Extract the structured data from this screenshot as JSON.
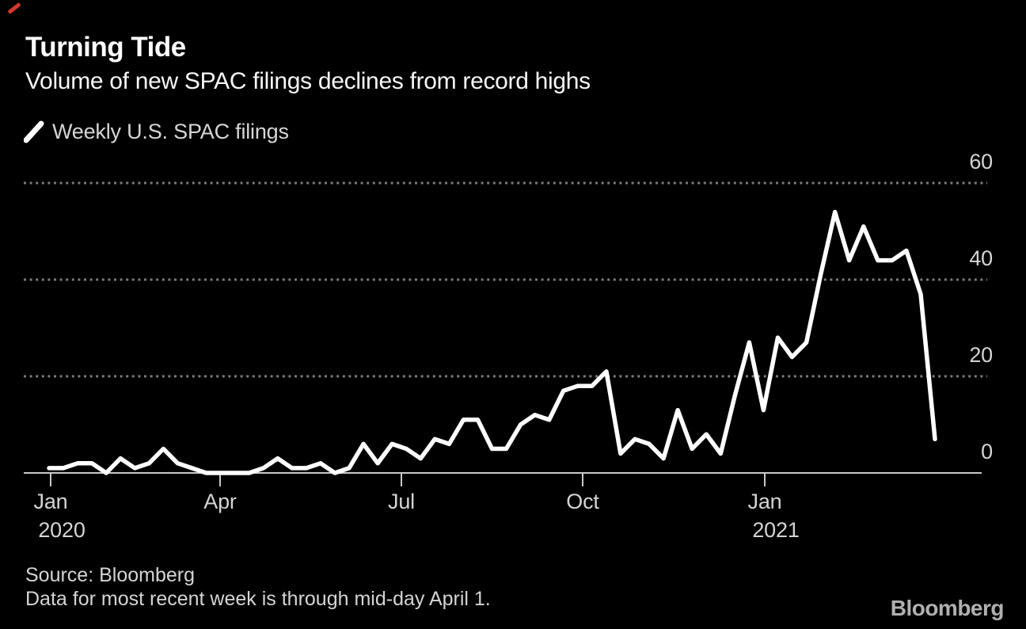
{
  "header": {
    "title": "Turning Tide",
    "subtitle": "Volume of new SPAC filings declines from record highs"
  },
  "legend": {
    "label": "Weekly U.S. SPAC filings",
    "marker": "white-slash"
  },
  "footer": {
    "source": "Source: Bloomberg",
    "note": "Data for most recent week is through mid-day April 1.",
    "logo": "Bloomberg"
  },
  "colors": {
    "background": "#000000",
    "line": "#ffffff",
    "grid": "#7a7a7a",
    "axis": "#c8c8c8",
    "label": "#d4d4d4",
    "accent_mark": "#d6372c"
  },
  "chart_data": {
    "type": "line",
    "title": "Turning Tide",
    "subtitle": "Volume of new SPAC filings declines from record highs",
    "xlabel": "",
    "ylabel": "Weekly U.S. SPAC filings",
    "x_unit": "week",
    "x_range": [
      "Jan 2020",
      "Apr 1 2021"
    ],
    "ylim": [
      0,
      60
    ],
    "grid": "dotted-horizontal",
    "legend_position": "top-left",
    "y_axis": {
      "side": "right",
      "ticks": [
        0,
        20,
        40,
        60
      ]
    },
    "x_axis": {
      "tick_labels": [
        {
          "label": "Jan",
          "year": "2020"
        },
        {
          "label": "Apr",
          "year": ""
        },
        {
          "label": "Jul",
          "year": ""
        },
        {
          "label": "Oct",
          "year": ""
        },
        {
          "label": "Jan",
          "year": "2021"
        }
      ]
    },
    "series": [
      {
        "name": "Weekly U.S. SPAC filings",
        "values": [
          1,
          1,
          2,
          2,
          0,
          3,
          1,
          2,
          5,
          2,
          1,
          0,
          0,
          0,
          0,
          1,
          3,
          1,
          1,
          2,
          0,
          1,
          6,
          2,
          6,
          5,
          3,
          7,
          6,
          11,
          11,
          5,
          5,
          10,
          12,
          11,
          17,
          18,
          18,
          21,
          4,
          7,
          6,
          3,
          13,
          5,
          8,
          4,
          16,
          27,
          13,
          28,
          24,
          27,
          41,
          54,
          44,
          51,
          44,
          44,
          46,
          37,
          7
        ]
      }
    ]
  }
}
